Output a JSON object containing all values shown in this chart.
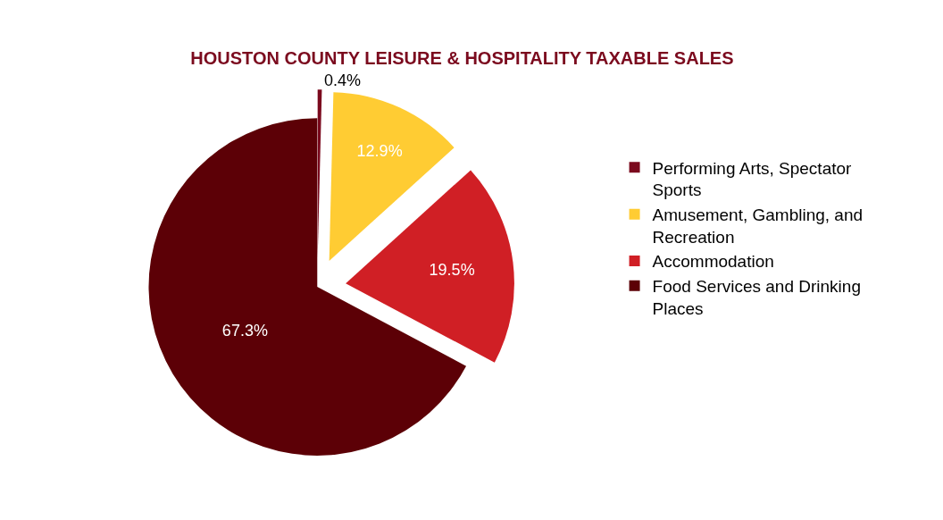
{
  "chart_data": {
    "type": "pie",
    "title": "HOUSTON COUNTY LEISURE & HOSPITALITY TAXABLE SALES",
    "categories": [
      "Performing Arts, Spectator Sports",
      "Amusement, Gambling, and Recreation",
      "Accommodation",
      "Food Services and Drinking Places"
    ],
    "values": [
      0.4,
      12.9,
      19.5,
      67.3
    ],
    "value_labels": [
      "0.4%",
      "12.9%",
      "19.5%",
      "67.3%"
    ],
    "colors": [
      "#7b0a1e",
      "#ffcc33",
      "#d01f25",
      "#5c0006"
    ],
    "legend": "right"
  }
}
